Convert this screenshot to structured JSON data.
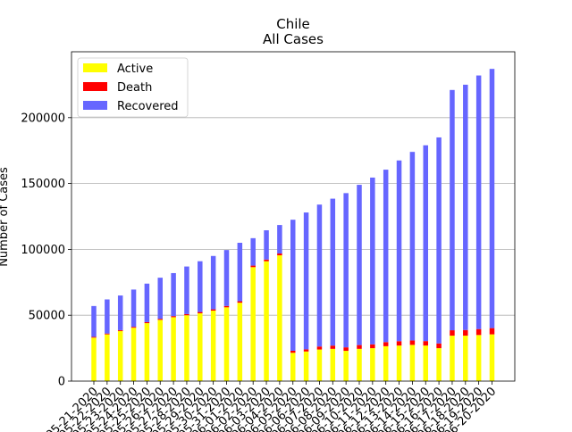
{
  "chart_data": {
    "type": "bar",
    "stacked": true,
    "title": "Chile",
    "subtitle": "All Cases",
    "xlabel": "",
    "ylabel": "Number of Cases",
    "ylim": [
      0,
      250000
    ],
    "yticks": [
      0,
      50000,
      100000,
      150000,
      200000
    ],
    "ytick_labels": [
      "0",
      "50000",
      "100000",
      "150000",
      "200000"
    ],
    "grid": "y",
    "legend": "top-left",
    "categories": [
      "05-21-2020",
      "05-22-2020",
      "05-23-2020",
      "05-24-2020",
      "05-25-2020",
      "05-26-2020",
      "05-27-2020",
      "05-28-2020",
      "05-29-2020",
      "05-30-2020",
      "05-31-2020",
      "06-01-2020",
      "06-02-2020",
      "06-03-2020",
      "06-04-2020",
      "06-05-2020",
      "06-06-2020",
      "06-07-2020",
      "06-08-2020",
      "06-09-2020",
      "06-10-2020",
      "06-11-2020",
      "06-12-2020",
      "06-13-2020",
      "06-14-2020",
      "06-15-2020",
      "06-16-2020",
      "06-17-2020",
      "06-18-2020",
      "06-19-2020",
      "06-20-2020"
    ],
    "series": [
      {
        "name": "Active",
        "color": "#ffff00",
        "values": [
          33000,
          35500,
          38000,
          40500,
          44000,
          46500,
          48500,
          50000,
          51500,
          53500,
          56000,
          59500,
          86500,
          91000,
          95500,
          21500,
          22500,
          24000,
          24500,
          23000,
          24500,
          25000,
          26500,
          27000,
          27500,
          27000,
          25000,
          34500,
          34500,
          35000,
          35500
        ]
      },
      {
        "name": "Death",
        "color": "#ff0000",
        "values": [
          589,
          630,
          673,
          718,
          761,
          806,
          841,
          890,
          944,
          997,
          1054,
          1113,
          1188,
          1275,
          1356,
          1541,
          1637,
          2283,
          2475,
          2648,
          2870,
          2913,
          3101,
          3323,
          3362,
          3383,
          3615,
          4093,
          4295,
          4502,
          4731
        ]
      },
      {
        "name": "Recovered",
        "color": "#6666ff",
        "values": [
          23411,
          25870,
          26327,
          28282,
          29239,
          31194,
          32659,
          36110,
          38556,
          40503,
          42446,
          44387,
          20812,
          22225,
          21644,
          99459,
          103863,
          107717,
          111525,
          117052,
          121630,
          126587,
          130899,
          137177,
          143138,
          148617,
          156385,
          182407,
          186205,
          192498,
          196769
        ]
      }
    ]
  }
}
